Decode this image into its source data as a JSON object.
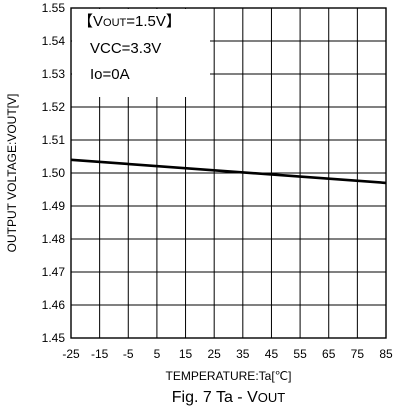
{
  "chart_data": {
    "type": "line",
    "caption": "Fig. 7 Ta - VOUT",
    "xlabel": "TEMPERATURE:Ta[℃]",
    "ylabel": "OUTPUT VOLTAGE:VOUT[V]",
    "xlim": [
      -25,
      85
    ],
    "ylim": [
      1.45,
      1.55
    ],
    "grid": true,
    "x_ticks": [
      -25,
      -15,
      -5,
      5,
      15,
      25,
      35,
      45,
      55,
      65,
      75,
      85
    ],
    "x_tick_labels": [
      "-25",
      "-15",
      "-5",
      "5",
      "15",
      "25",
      "35",
      "45",
      "55",
      "65",
      "75",
      "85"
    ],
    "y_ticks": [
      1.45,
      1.46,
      1.47,
      1.48,
      1.49,
      1.5,
      1.51,
      1.52,
      1.53,
      1.54,
      1.55
    ],
    "y_tick_labels": [
      "1.45",
      "1.46",
      "1.47",
      "1.48",
      "1.49",
      "1.50",
      "1.51",
      "1.52",
      "1.53",
      "1.54",
      "1.55"
    ],
    "annotations": {
      "condition_1": "【VOUT=1.5V】",
      "condition_2": "VCC=3.3V",
      "condition_3": "Io=0A"
    },
    "series": [
      {
        "x": [
          -25,
          85
        ],
        "y": [
          1.504,
          1.497
        ]
      }
    ]
  }
}
